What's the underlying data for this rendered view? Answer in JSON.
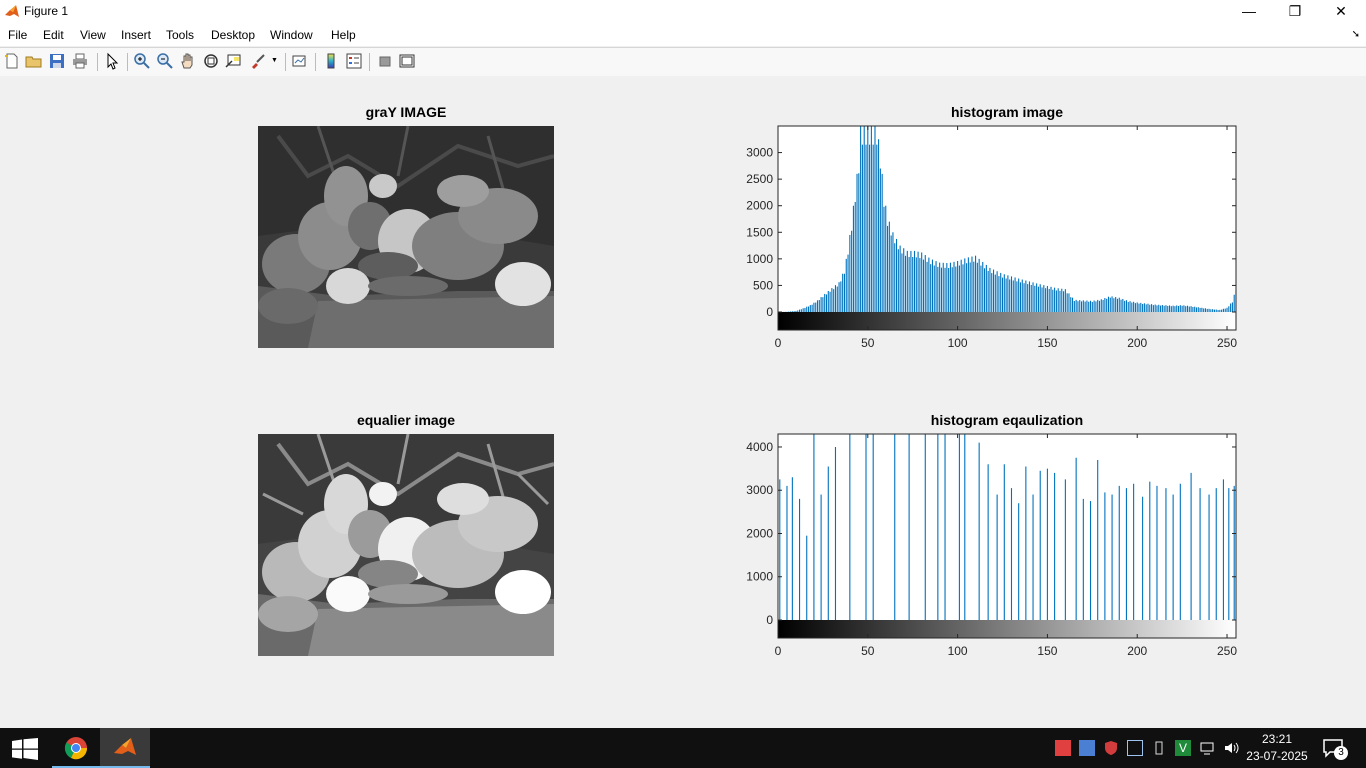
{
  "window": {
    "title": "Figure 1",
    "minimize_glyph": "—",
    "maximize_glyph": "❐",
    "close_glyph": "✕"
  },
  "menu": {
    "items": [
      "File",
      "Edit",
      "View",
      "Insert",
      "Tools",
      "Desktop",
      "Window",
      "Help"
    ]
  },
  "toolbar": {
    "icons": [
      "new-figure-icon",
      "open-file-icon",
      "save-icon",
      "print-icon",
      "pointer-icon",
      "zoom-in-icon",
      "zoom-out-icon",
      "pan-icon",
      "rotate-3d-icon",
      "data-cursor-icon",
      "brush-icon",
      "link-plot-icon",
      "colorbar-icon",
      "legend-icon",
      "hide-plot-tools-icon",
      "show-plot-tools-icon"
    ]
  },
  "axes": {
    "gray_image": {
      "title": "graY IMAGE"
    },
    "equalized_image": {
      "title": "equalier image"
    },
    "histogram": {
      "title": "histogram image"
    },
    "histogram_eq": {
      "title": "histogram eqaulization"
    }
  },
  "chart_data": [
    {
      "type": "bar",
      "title": "histogram image",
      "xlabel": "",
      "ylabel": "",
      "xlim": [
        0,
        255
      ],
      "ylim": [
        -250,
        3500
      ],
      "yticks": [
        0,
        500,
        1000,
        1500,
        2000,
        2500,
        3000
      ],
      "xticks": [
        0,
        50,
        100,
        150,
        200,
        250
      ],
      "colorbar": "gray",
      "bar_color": "#0072bd",
      "points": [
        [
          0,
          0
        ],
        [
          5,
          5
        ],
        [
          10,
          20
        ],
        [
          14,
          70
        ],
        [
          18,
          130
        ],
        [
          22,
          220
        ],
        [
          26,
          340
        ],
        [
          30,
          450
        ],
        [
          34,
          560
        ],
        [
          37,
          800
        ],
        [
          39,
          1200
        ],
        [
          41,
          1700
        ],
        [
          43,
          2300
        ],
        [
          45,
          2900
        ],
        [
          46,
          3500
        ],
        [
          55,
          3500
        ],
        [
          57,
          3000
        ],
        [
          59,
          2200
        ],
        [
          61,
          1800
        ],
        [
          64,
          1500
        ],
        [
          68,
          1250
        ],
        [
          72,
          1150
        ],
        [
          76,
          1150
        ],
        [
          80,
          1120
        ],
        [
          85,
          1000
        ],
        [
          90,
          930
        ],
        [
          95,
          920
        ],
        [
          100,
          960
        ],
        [
          105,
          1020
        ],
        [
          110,
          1060
        ],
        [
          113,
          970
        ],
        [
          118,
          830
        ],
        [
          125,
          720
        ],
        [
          135,
          620
        ],
        [
          145,
          530
        ],
        [
          155,
          450
        ],
        [
          160,
          430
        ],
        [
          165,
          230
        ],
        [
          175,
          210
        ],
        [
          180,
          240
        ],
        [
          185,
          300
        ],
        [
          190,
          270
        ],
        [
          195,
          210
        ],
        [
          200,
          180
        ],
        [
          210,
          140
        ],
        [
          220,
          120
        ],
        [
          225,
          130
        ],
        [
          230,
          110
        ],
        [
          240,
          60
        ],
        [
          246,
          40
        ],
        [
          250,
          80
        ],
        [
          253,
          200
        ],
        [
          255,
          450
        ]
      ]
    },
    {
      "type": "bar",
      "title": "histogram eqaulization",
      "xlabel": "",
      "ylabel": "",
      "xlim": [
        0,
        255
      ],
      "ylim": [
        -300,
        4300
      ],
      "yticks": [
        0,
        1000,
        2000,
        3000,
        4000
      ],
      "xticks": [
        0,
        50,
        100,
        150,
        200,
        250
      ],
      "colorbar": "gray",
      "bar_color": "#0072bd",
      "bars": [
        [
          1,
          3250
        ],
        [
          5,
          3100
        ],
        [
          8,
          3300
        ],
        [
          12,
          2800
        ],
        [
          16,
          1950
        ],
        [
          20,
          4300
        ],
        [
          24,
          2900
        ],
        [
          28,
          3550
        ],
        [
          32,
          4000
        ],
        [
          40,
          4300
        ],
        [
          49,
          4300
        ],
        [
          53,
          4300
        ],
        [
          65,
          4300
        ],
        [
          73,
          4300
        ],
        [
          82,
          4300
        ],
        [
          89,
          4300
        ],
        [
          93,
          4300
        ],
        [
          101,
          4300
        ],
        [
          104,
          4300
        ],
        [
          112,
          4100
        ],
        [
          117,
          3600
        ],
        [
          122,
          2900
        ],
        [
          126,
          3600
        ],
        [
          130,
          3050
        ],
        [
          134,
          2700
        ],
        [
          138,
          3550
        ],
        [
          142,
          2900
        ],
        [
          146,
          3450
        ],
        [
          150,
          3500
        ],
        [
          154,
          3400
        ],
        [
          160,
          3250
        ],
        [
          166,
          3750
        ],
        [
          170,
          2800
        ],
        [
          174,
          2750
        ],
        [
          178,
          3700
        ],
        [
          182,
          2950
        ],
        [
          186,
          2900
        ],
        [
          190,
          3100
        ],
        [
          194,
          3050
        ],
        [
          198,
          3150
        ],
        [
          203,
          2850
        ],
        [
          207,
          3200
        ],
        [
          211,
          3100
        ],
        [
          216,
          3050
        ],
        [
          220,
          2900
        ],
        [
          224,
          3150
        ],
        [
          230,
          3400
        ],
        [
          235,
          3050
        ],
        [
          240,
          2900
        ],
        [
          244,
          3050
        ],
        [
          248,
          3250
        ],
        [
          251,
          3050
        ],
        [
          254,
          3100
        ]
      ]
    }
  ],
  "taskbar": {
    "apps": [
      "windows-start-icon",
      "chrome-icon",
      "matlab-icon"
    ],
    "time": "23:21",
    "date": "23-07-2025",
    "notification_count": "3"
  }
}
